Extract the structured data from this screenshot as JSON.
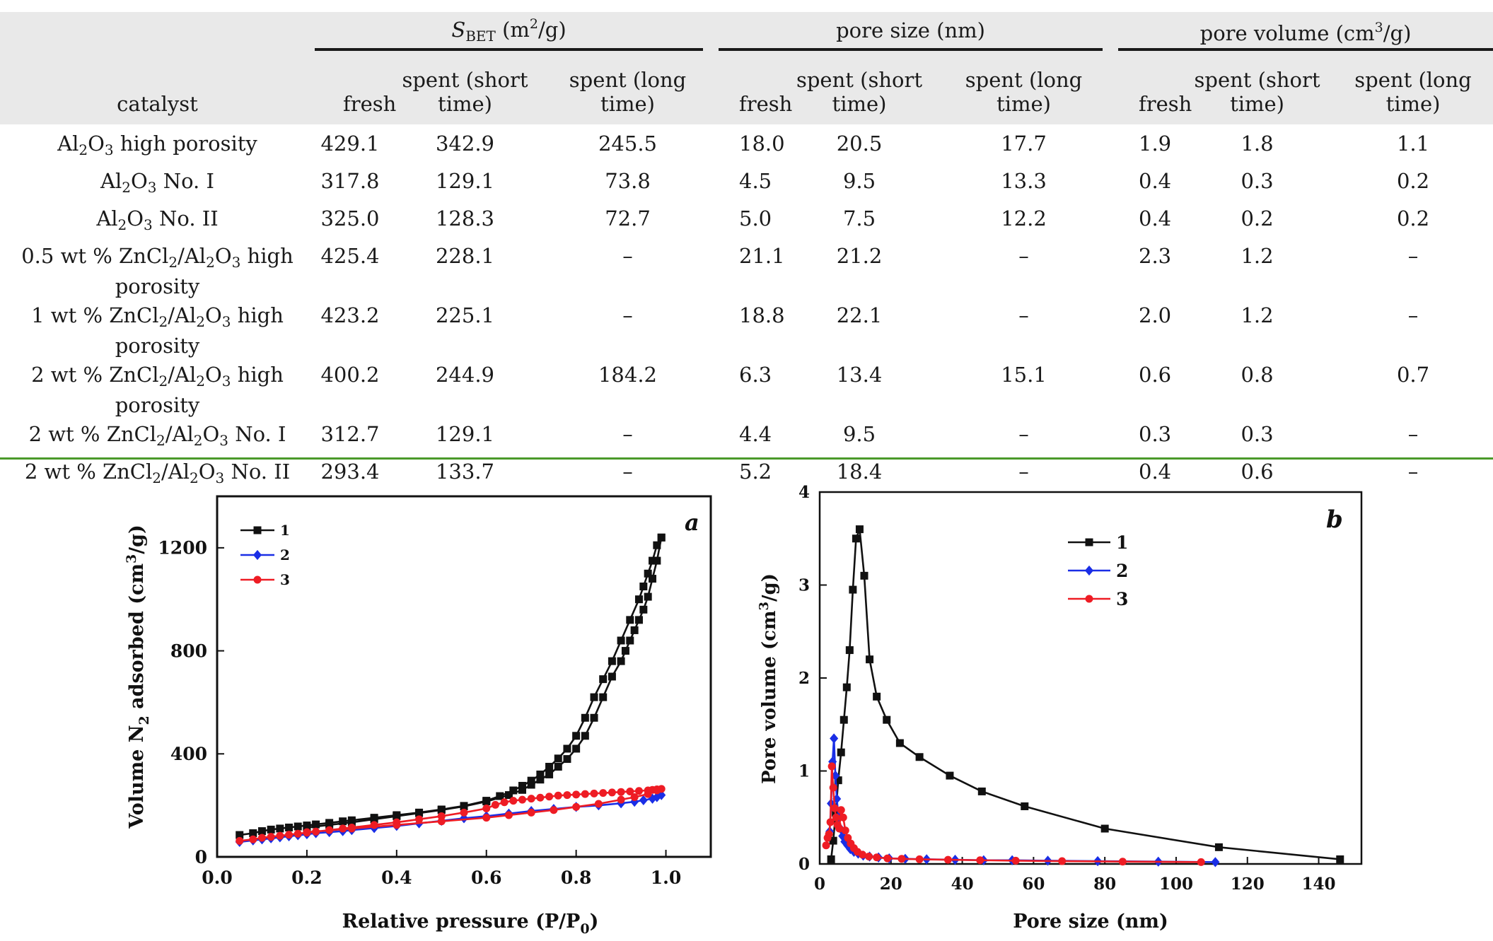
{
  "table": {
    "group_headers": [
      {
        "main": "S",
        "sub": "BET",
        "unit_prefix": " (m",
        "unit_sup": "2",
        "unit_suffix": "/g)"
      },
      {
        "main": "pore size (nm)"
      },
      {
        "main": "pore volume (cm",
        "unit_sup": "3",
        "unit_suffix": "/g)"
      }
    ],
    "catalyst_header": "catalyst",
    "sub_headers": [
      "fresh",
      "spent (short time)",
      "spent (long time)",
      "fresh",
      "spent (short time)",
      "spent (long time)",
      "fresh",
      "spent (short time)",
      "spent (long time)"
    ],
    "rows": [
      {
        "catalyst": "Al2O3 high porosity",
        "values": [
          "429.1",
          "342.9",
          "245.5",
          "18.0",
          "20.5",
          "17.7",
          "1.9",
          "1.8",
          "1.1"
        ]
      },
      {
        "catalyst": "Al2O3 No. I",
        "values": [
          "317.8",
          "129.1",
          "73.8",
          "4.5",
          "9.5",
          "13.3",
          "0.4",
          "0.3",
          "0.2"
        ]
      },
      {
        "catalyst": "Al2O3 No. II",
        "values": [
          "325.0",
          "128.3",
          "72.7",
          "5.0",
          "7.5",
          "12.2",
          "0.4",
          "0.2",
          "0.2"
        ]
      },
      {
        "catalyst": "0.5 wt % ZnCl2/Al2O3 high porosity",
        "values": [
          "425.4",
          "228.1",
          "–",
          "21.1",
          "21.2",
          "–",
          "2.3",
          "1.2",
          "–"
        ]
      },
      {
        "catalyst": "1 wt % ZnCl2/Al2O3 high porosity",
        "values": [
          "423.2",
          "225.1",
          "–",
          "18.8",
          "22.1",
          "–",
          "2.0",
          "1.2",
          "–"
        ]
      },
      {
        "catalyst": "2 wt % ZnCl2/Al2O3 high porosity",
        "values": [
          "400.2",
          "244.9",
          "184.2",
          "6.3",
          "13.4",
          "15.1",
          "0.6",
          "0.8",
          "0.7"
        ]
      },
      {
        "catalyst": "2 wt % ZnCl2/Al2O3 No. I",
        "values": [
          "312.7",
          "129.1",
          "–",
          "4.4",
          "9.5",
          "–",
          "0.3",
          "0.3",
          "–"
        ]
      },
      {
        "catalyst": "2 wt % ZnCl2/Al2O3 No. II",
        "values": [
          "293.4",
          "133.7",
          "–",
          "5.2",
          "18.4",
          "–",
          "0.4",
          "0.6",
          "–"
        ]
      }
    ]
  },
  "colors": {
    "series1": "#111111",
    "series2": "#1a2ee6",
    "series3": "#ee1c24",
    "rule": "#4a9a2a",
    "header_bg": "#e9e9e9"
  },
  "chart_data": [
    {
      "type": "line",
      "panel_label": "a",
      "xlabel": "Relative pressure (P/P0)",
      "ylabel": "Volume N2 adsorbed (cm3/g)",
      "xlim": [
        0.0,
        1.1
      ],
      "ylim": [
        0,
        1400
      ],
      "xticks": [
        0.0,
        0.2,
        0.4,
        0.6,
        0.8,
        1.0
      ],
      "xtick_labels": [
        "0.0",
        "0.2",
        "0.4",
        "0.6",
        "0.8",
        "1.0"
      ],
      "yticks": [
        0,
        400,
        800,
        1200
      ],
      "ytick_labels": [
        "0",
        "400",
        "800",
        "1200"
      ],
      "legend": [
        "1",
        "2",
        "3"
      ],
      "series": [
        {
          "name": "1",
          "marker": "square",
          "x": [
            0.05,
            0.08,
            0.1,
            0.12,
            0.14,
            0.16,
            0.18,
            0.2,
            0.22,
            0.25,
            0.28,
            0.3,
            0.35,
            0.4,
            0.45,
            0.5,
            0.55,
            0.6,
            0.63,
            0.66,
            0.68,
            0.7,
            0.72,
            0.74,
            0.76,
            0.78,
            0.8,
            0.82,
            0.84,
            0.86,
            0.88,
            0.9,
            0.92,
            0.94,
            0.95,
            0.96,
            0.97,
            0.98,
            0.99,
            0.99,
            0.98,
            0.97,
            0.96,
            0.95,
            0.94,
            0.93,
            0.92,
            0.91,
            0.9,
            0.88,
            0.86,
            0.84,
            0.82,
            0.8,
            0.78,
            0.76,
            0.74,
            0.72,
            0.7,
            0.68,
            0.65,
            0.6,
            0.55,
            0.5,
            0.45,
            0.4,
            0.35,
            0.3,
            0.25,
            0.2
          ],
          "y": [
            85,
            92,
            100,
            106,
            110,
            114,
            118,
            122,
            126,
            132,
            138,
            142,
            152,
            162,
            172,
            184,
            198,
            218,
            236,
            258,
            276,
            296,
            320,
            350,
            382,
            420,
            470,
            540,
            620,
            690,
            760,
            840,
            920,
            1000,
            1050,
            1100,
            1150,
            1210,
            1240,
            1240,
            1150,
            1080,
            1010,
            960,
            920,
            880,
            840,
            800,
            760,
            700,
            620,
            540,
            470,
            420,
            380,
            350,
            320,
            300,
            280,
            260,
            240,
            215,
            196,
            182,
            170,
            158,
            146,
            134,
            124,
            114
          ]
        },
        {
          "name": "2",
          "marker": "diamond",
          "x": [
            0.05,
            0.08,
            0.1,
            0.12,
            0.14,
            0.16,
            0.18,
            0.2,
            0.22,
            0.25,
            0.28,
            0.3,
            0.35,
            0.4,
            0.45,
            0.5,
            0.55,
            0.6,
            0.65,
            0.7,
            0.75,
            0.8,
            0.85,
            0.9,
            0.93,
            0.95,
            0.97,
            0.98,
            0.99
          ],
          "y": [
            58,
            64,
            68,
            72,
            76,
            80,
            84,
            88,
            92,
            96,
            100,
            104,
            112,
            120,
            130,
            140,
            150,
            158,
            168,
            178,
            186,
            194,
            200,
            208,
            214,
            220,
            226,
            232,
            240
          ]
        },
        {
          "name": "3",
          "marker": "circle",
          "x": [
            0.05,
            0.08,
            0.1,
            0.12,
            0.14,
            0.16,
            0.18,
            0.2,
            0.22,
            0.25,
            0.28,
            0.3,
            0.35,
            0.4,
            0.45,
            0.5,
            0.55,
            0.6,
            0.62,
            0.64,
            0.66,
            0.68,
            0.7,
            0.72,
            0.74,
            0.76,
            0.78,
            0.8,
            0.82,
            0.84,
            0.86,
            0.88,
            0.9,
            0.92,
            0.94,
            0.96,
            0.97,
            0.98,
            0.99,
            0.98,
            0.96,
            0.93,
            0.9,
            0.85,
            0.8,
            0.75,
            0.7,
            0.65,
            0.6,
            0.5,
            0.4,
            0.3,
            0.2
          ],
          "y": [
            62,
            68,
            74,
            78,
            82,
            86,
            90,
            94,
            98,
            104,
            110,
            114,
            124,
            134,
            146,
            158,
            172,
            188,
            202,
            212,
            218,
            222,
            226,
            230,
            234,
            238,
            240,
            242,
            244,
            246,
            248,
            250,
            252,
            254,
            256,
            258,
            260,
            262,
            264,
            258,
            244,
            232,
            222,
            206,
            194,
            182,
            172,
            162,
            152,
            138,
            124,
            110,
            96
          ]
        }
      ]
    },
    {
      "type": "line",
      "panel_label": "b",
      "xlabel": "Pore size (nm)",
      "ylabel": "Pore volume (cm3/g)",
      "xlim": [
        0,
        152
      ],
      "ylim": [
        0,
        4
      ],
      "xticks": [
        0,
        20,
        40,
        60,
        80,
        100,
        120,
        140
      ],
      "xtick_labels": [
        "0",
        "20",
        "40",
        "60",
        "80",
        "100",
        "120",
        "140"
      ],
      "yticks": [
        0,
        1,
        2,
        3,
        4
      ],
      "ytick_labels": [
        "0",
        "1",
        "2",
        "3",
        "4"
      ],
      "legend": [
        "1",
        "2",
        "3"
      ],
      "series": [
        {
          "name": "1",
          "marker": "square",
          "x": [
            3.2,
            3.8,
            4.5,
            5.2,
            6.0,
            6.8,
            7.6,
            8.4,
            9.3,
            10.2,
            11.2,
            12.5,
            14.0,
            16.0,
            18.8,
            22.5,
            28.0,
            36.5,
            45.5,
            57.5,
            80.0,
            112.0,
            146.0
          ],
          "y": [
            0.05,
            0.25,
            0.55,
            0.9,
            1.2,
            1.55,
            1.9,
            2.3,
            2.95,
            3.5,
            3.6,
            3.1,
            2.2,
            1.8,
            1.55,
            1.3,
            1.15,
            0.95,
            0.78,
            0.62,
            0.38,
            0.18,
            0.05
          ]
        },
        {
          "name": "2",
          "marker": "diamond",
          "x": [
            2.8,
            3.2,
            3.6,
            4.0,
            4.4,
            4.8,
            5.3,
            5.8,
            6.4,
            7.0,
            7.8,
            8.6,
            9.6,
            10.8,
            12.2,
            14.0,
            16.5,
            19.5,
            24.0,
            30.0,
            38.0,
            46.0,
            54.0,
            64.0,
            78.0,
            95.0,
            111.0
          ],
          "y": [
            0.35,
            0.65,
            1.1,
            1.35,
            0.95,
            0.7,
            0.5,
            0.38,
            0.3,
            0.24,
            0.2,
            0.16,
            0.13,
            0.11,
            0.09,
            0.08,
            0.07,
            0.06,
            0.055,
            0.05,
            0.045,
            0.04,
            0.04,
            0.035,
            0.03,
            0.025,
            0.02
          ]
        },
        {
          "name": "3",
          "marker": "circle",
          "x": [
            1.8,
            2.2,
            2.6,
            3.0,
            3.4,
            3.8,
            4.2,
            4.6,
            5.0,
            5.5,
            6.0,
            6.6,
            7.2,
            7.9,
            8.7,
            9.6,
            10.6,
            12.0,
            13.8,
            16.0,
            19.0,
            23.0,
            28.0,
            36.0,
            45.0,
            55.0,
            68.0,
            85.0,
            107.0
          ],
          "y": [
            0.2,
            0.28,
            0.32,
            0.45,
            1.05,
            0.82,
            0.6,
            0.5,
            0.42,
            0.38,
            0.58,
            0.5,
            0.36,
            0.28,
            0.22,
            0.17,
            0.13,
            0.1,
            0.08,
            0.07,
            0.06,
            0.055,
            0.05,
            0.045,
            0.04,
            0.035,
            0.03,
            0.025,
            0.02
          ]
        }
      ]
    }
  ]
}
